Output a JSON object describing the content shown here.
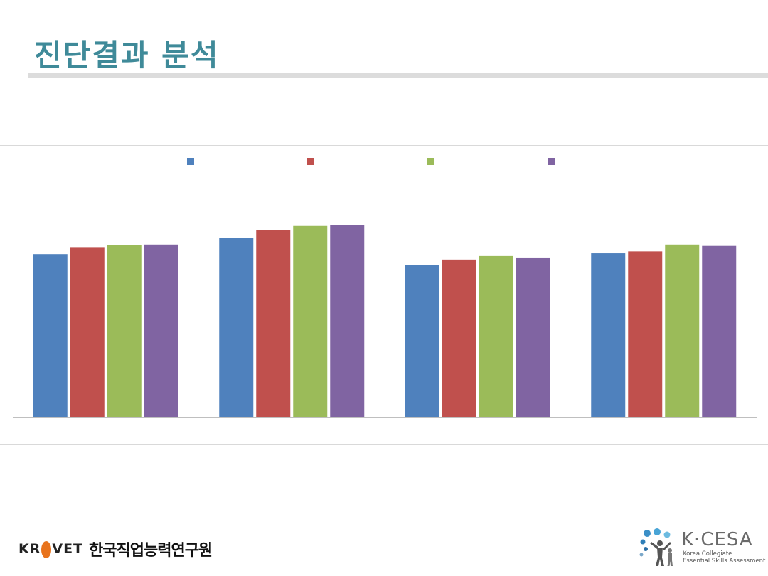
{
  "slide": {
    "title": "진단결과 분석"
  },
  "chart_data": {
    "type": "bar",
    "categories": [
      "",
      "",
      "",
      ""
    ],
    "series": [
      {
        "color": "#4f81bd",
        "values": [
          60,
          66,
          56,
          60.3
        ]
      },
      {
        "color": "#c0504d",
        "values": [
          62.3,
          68.7,
          58,
          61
        ]
      },
      {
        "color": "#9bbb59",
        "values": [
          63.3,
          70.3,
          59.3,
          63.5
        ]
      },
      {
        "color": "#8064a2",
        "values": [
          63.5,
          70.5,
          58.5,
          63
        ]
      }
    ],
    "ylim": [
      0,
      100
    ],
    "grid": false,
    "legend_position": "top"
  },
  "footer": {
    "krivet": {
      "wordmark_pre": "KR",
      "wordmark_post": "VET",
      "org_name": "한국직업능력연구원"
    },
    "kcesa": {
      "name": "K·CESA",
      "subtitle_line1": "Korea Collegiate",
      "subtitle_line2": "Essential Skills Assessment"
    }
  }
}
